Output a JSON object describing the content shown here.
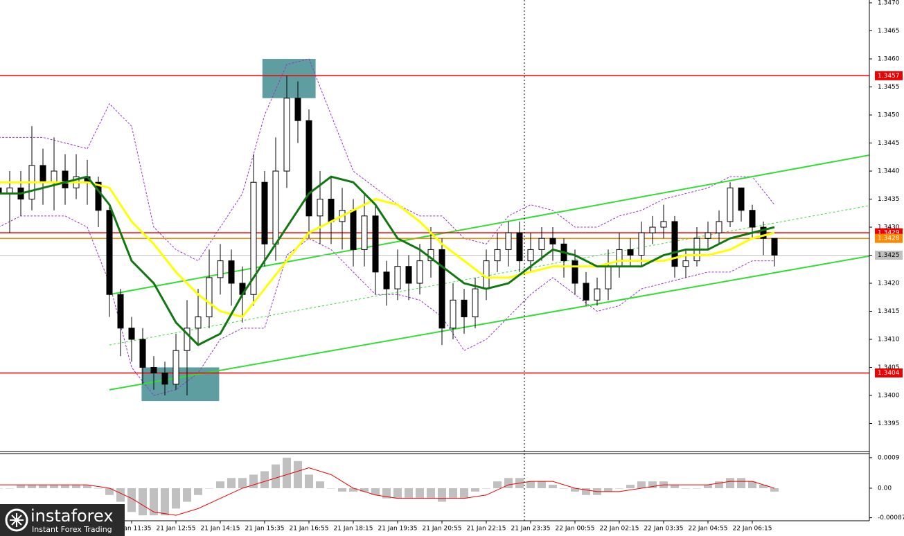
{
  "chart_data": {
    "type": "candlestick",
    "xlim": [
      0.125,
      78.5625
    ],
    "xticks": [
      {
        "value": 12,
        "label": "21 Jan 11:35"
      },
      {
        "value": 16,
        "label": "21 Jan 12:55"
      },
      {
        "value": 20,
        "label": "21 Jan 14:15"
      },
      {
        "value": 24,
        "label": "21 Jan 15:35"
      },
      {
        "value": 28,
        "label": "21 Jan 16:55"
      },
      {
        "value": 32,
        "label": "21 Jan 18:15"
      },
      {
        "value": 36,
        "label": "21 Jan 19:35"
      },
      {
        "value": 40,
        "label": "21 Jan 20:55"
      },
      {
        "value": 44,
        "label": "21 Jan 22:15"
      },
      {
        "value": 48,
        "label": "21 Jan 23:35"
      },
      {
        "value": 52,
        "label": "22 Jan 00:55"
      },
      {
        "value": 56,
        "label": "22 Jan 02:15"
      },
      {
        "value": 60,
        "label": "22 Jan 03:35"
      },
      {
        "value": 64,
        "label": "22 Jan 04:55"
      },
      {
        "value": 68,
        "label": "22 Jan 06:15"
      }
    ],
    "ylim": [
      1.339,
      1.34705
    ],
    "yticks": [
      {
        "value": 1.347,
        "label": "1.3470"
      },
      1.3465,
      {
        "value": 1.346,
        "label": "1.3460"
      },
      1.3455,
      {
        "value": 1.345,
        "label": "1.3450"
      },
      1.3445,
      {
        "value": 1.344,
        "label": "1.3440"
      },
      1.3435,
      {
        "value": 1.343,
        "label": "1.3430"
      },
      1.3425,
      {
        "value": 1.342,
        "label": "1.3420"
      },
      1.3415,
      {
        "value": 1.341,
        "label": "1.3410"
      },
      1.3405,
      {
        "value": 1.34,
        "label": "1.3400"
      },
      1.3395
    ],
    "up_color": "#ffffff",
    "down_color": "#000000",
    "open": [
      1.3437,
      1.3436,
      1.3437,
      1.3435,
      1.3441,
      1.3438,
      1.344,
      1.3437,
      1.3439,
      1.3438,
      1.3433,
      1.3418,
      1.3412,
      1.341,
      1.3405,
      1.3404,
      1.3402,
      1.3408,
      1.3412,
      1.3414,
      1.3421,
      1.3424,
      1.342,
      1.3418,
      1.3438,
      1.3427,
      1.344,
      1.3453,
      1.3449,
      1.3432,
      1.3435,
      1.3431,
      1.3433,
      1.3426,
      1.3432,
      1.3422,
      1.3419,
      1.3423,
      1.342,
      1.3424,
      1.3426,
      1.3412,
      1.3417,
      1.3414,
      1.3419,
      1.3424,
      1.3426,
      1.3429,
      1.3424,
      1.3426,
      1.3428,
      1.3427,
      1.3424,
      1.342,
      1.3417,
      1.3419,
      1.3423,
      1.3426,
      1.3425,
      1.3429,
      1.343,
      1.3431,
      1.3423,
      1.3424,
      1.3428,
      1.3429,
      1.3431,
      1.3437,
      1.3433,
      1.343,
      1.3428
    ],
    "high": [
      1.344,
      1.344,
      1.344,
      1.3448,
      1.3444,
      1.3446,
      1.3443,
      1.3443,
      1.3442,
      1.3439,
      1.3434,
      1.3419,
      1.3414,
      1.3412,
      1.3407,
      1.3406,
      1.3411,
      1.3417,
      1.3419,
      1.3426,
      1.3427,
      1.3426,
      1.3423,
      1.3443,
      1.344,
      1.3446,
      1.3457,
      1.3456,
      1.3451,
      1.344,
      1.3439,
      1.3437,
      1.3435,
      1.3436,
      1.3434,
      1.3424,
      1.3426,
      1.3425,
      1.3427,
      1.343,
      1.3428,
      1.342,
      1.3419,
      1.3421,
      1.3426,
      1.3429,
      1.3431,
      1.3431,
      1.3429,
      1.343,
      1.343,
      1.3428,
      1.3426,
      1.3422,
      1.3421,
      1.3426,
      1.3429,
      1.3428,
      1.3431,
      1.3432,
      1.3434,
      1.3432,
      1.3426,
      1.343,
      1.3431,
      1.3433,
      1.3438,
      1.3437,
      1.3434,
      1.3431,
      1.3428
    ],
    "low": [
      1.3433,
      1.3429,
      1.3432,
      1.3433,
      1.3434,
      1.3433,
      1.3434,
      1.3435,
      1.3434,
      1.343,
      1.3414,
      1.3407,
      1.3406,
      1.3402,
      1.3401,
      1.34,
      1.3401,
      1.34,
      1.3409,
      1.3412,
      1.3418,
      1.3416,
      1.3413,
      1.3416,
      1.3423,
      1.3424,
      1.3437,
      1.3445,
      1.3428,
      1.3427,
      1.3427,
      1.3426,
      1.3423,
      1.3423,
      1.3418,
      1.3416,
      1.3417,
      1.3417,
      1.3418,
      1.3421,
      1.3409,
      1.341,
      1.3411,
      1.3412,
      1.3417,
      1.3422,
      1.3423,
      1.3422,
      1.3422,
      1.3424,
      1.3424,
      1.3421,
      1.3418,
      1.3416,
      1.3416,
      1.3417,
      1.3421,
      1.3423,
      1.3423,
      1.3427,
      1.3428,
      1.3421,
      1.3421,
      1.3423,
      1.3426,
      1.3427,
      1.343,
      1.3431,
      1.3428,
      1.3425,
      1.3423
    ],
    "close": [
      1.3436,
      1.3437,
      1.3435,
      1.3441,
      1.3438,
      1.344,
      1.3437,
      1.3439,
      1.3438,
      1.3433,
      1.3418,
      1.3412,
      1.341,
      1.3405,
      1.3404,
      1.3402,
      1.3408,
      1.3412,
      1.3414,
      1.3421,
      1.3424,
      1.342,
      1.3418,
      1.3438,
      1.3427,
      1.344,
      1.3453,
      1.3449,
      1.3432,
      1.3435,
      1.3431,
      1.3433,
      1.3426,
      1.3432,
      1.3422,
      1.3419,
      1.3423,
      1.342,
      1.3424,
      1.3426,
      1.3412,
      1.3417,
      1.3414,
      1.3419,
      1.3424,
      1.3426,
      1.3429,
      1.3424,
      1.3426,
      1.3428,
      1.3427,
      1.3424,
      1.342,
      1.3417,
      1.3419,
      1.3423,
      1.3426,
      1.3425,
      1.3429,
      1.343,
      1.3431,
      1.3423,
      1.3424,
      1.3428,
      1.3429,
      1.3431,
      1.3437,
      1.3433,
      1.343,
      1.3428,
      1.3425
    ],
    "moving_averages": {
      "x": [
        0,
        2,
        4,
        6,
        8,
        10,
        12,
        14,
        16,
        18,
        20,
        22,
        24,
        26,
        28,
        30,
        32,
        34,
        36,
        38,
        40,
        42,
        44,
        46,
        48,
        50,
        52,
        54,
        56,
        58,
        60,
        62,
        64,
        66,
        68,
        70
      ],
      "series": [
        {
          "color": "#ffff00",
          "values": [
            1.3438,
            1.3438,
            1.3438,
            1.3438,
            1.3438,
            1.3437,
            1.3431,
            1.3427,
            1.3422,
            1.3418,
            1.3415,
            1.3414,
            1.3419,
            1.3424,
            1.3429,
            1.3431,
            1.3433,
            1.3435,
            1.3434,
            1.3431,
            1.3427,
            1.3424,
            1.3421,
            1.3421,
            1.3422,
            1.3423,
            1.3423,
            1.3423,
            1.3424,
            1.3424,
            1.3424,
            1.3425,
            1.3425,
            1.3426,
            1.3428,
            1.3429
          ]
        },
        {
          "color": "#117711",
          "values": [
            1.3436,
            1.3436,
            1.3437,
            1.3438,
            1.3439,
            1.3434,
            1.3424,
            1.342,
            1.3413,
            1.3409,
            1.3411,
            1.3418,
            1.3424,
            1.343,
            1.3436,
            1.3439,
            1.3438,
            1.3434,
            1.3428,
            1.3426,
            1.3423,
            1.342,
            1.3419,
            1.342,
            1.3423,
            1.3426,
            1.3425,
            1.3423,
            1.3423,
            1.3423,
            1.3425,
            1.3426,
            1.3426,
            1.3428,
            1.3429,
            1.343
          ]
        }
      ]
    },
    "envelope": {
      "color": "#9933cc",
      "upper": [
        1.3446,
        1.3446,
        1.3446,
        1.3445,
        1.3444,
        1.3452,
        1.3448,
        1.343,
        1.3426,
        1.3424,
        1.343,
        1.3436,
        1.345,
        1.3459,
        1.346,
        1.345,
        1.344,
        1.3437,
        1.3434,
        1.3432,
        1.3432,
        1.3428,
        1.3427,
        1.3432,
        1.3434,
        1.3433,
        1.343,
        1.343,
        1.3432,
        1.3433,
        1.3435,
        1.3436,
        1.3437,
        1.3439,
        1.3439,
        1.3434
      ],
      "lower": [
        1.343,
        1.3432,
        1.3432,
        1.3432,
        1.343,
        1.342,
        1.3405,
        1.34,
        1.3401,
        1.3404,
        1.341,
        1.3412,
        1.3412,
        1.3425,
        1.3428,
        1.3426,
        1.3422,
        1.3418,
        1.3418,
        1.3417,
        1.3414,
        1.3408,
        1.341,
        1.3414,
        1.3418,
        1.3421,
        1.3418,
        1.3415,
        1.3416,
        1.3419,
        1.342,
        1.3421,
        1.3422,
        1.3422,
        1.3424,
        1.3424
      ]
    },
    "trendlines": [
      {
        "x": [
          10,
          79
        ],
        "values": [
          1.3401,
          1.3425
        ],
        "color": "#33dd33"
      },
      {
        "x": [
          10,
          79
        ],
        "values": [
          1.3418,
          1.3443
        ],
        "color": "#33dd33"
      },
      {
        "x": [
          10,
          79
        ],
        "values": [
          1.3409,
          1.3434
        ],
        "color": "#33dd33",
        "dashed": true
      }
    ],
    "zones": [
      {
        "x": [
          23.8,
          28.6
        ],
        "y": [
          1.3453,
          1.346
        ],
        "color": "#5f9ea0"
      },
      {
        "x": [
          12.9,
          19.9
        ],
        "y": [
          1.3399,
          1.3405
        ],
        "color": "#5f9ea0"
      }
    ],
    "levels": [
      {
        "value": 1.3457,
        "color": "#ee0000"
      },
      {
        "value": 1.3429,
        "color": "#ee0000"
      },
      {
        "value": 1.3428,
        "color": "#ff8800"
      },
      {
        "value": 1.3425,
        "color": "#c0c0c0"
      },
      {
        "value": 1.3404,
        "color": "#ee0000"
      }
    ],
    "macd": {
      "ylim": [
        -0.00096,
        0.00102
      ],
      "yticks": [
        0.0009,
        {
          "value": 0,
          "label": "0.00"
        },
        -0.00087
      ],
      "hist_color": "#c0c0c0",
      "signal_color": "#ee0000",
      "histogram": [
        0.0,
        0.0,
        0.0001,
        0.0001,
        0.0001,
        0.0001,
        0.0001,
        0.0001,
        0.0001,
        0.0,
        -0.0002,
        -0.0004,
        -0.0007,
        -0.0008,
        -0.0008,
        -0.0008,
        -0.0006,
        -0.0004,
        -0.0002,
        0.0,
        0.0002,
        0.0003,
        0.0003,
        0.0004,
        0.0005,
        0.0007,
        0.0009,
        0.0008,
        0.0004,
        0.0002,
        0.0,
        -0.0001,
        -0.0001,
        -0.0001,
        -0.0002,
        -0.0003,
        -0.0003,
        -0.0003,
        -0.0003,
        -0.0003,
        -0.0004,
        -0.0003,
        -0.0003,
        -0.0001,
        0.0,
        0.0002,
        0.0003,
        0.0003,
        0.0002,
        0.0002,
        0.0001,
        0.0,
        -0.0001,
        -0.0002,
        -0.0002,
        -0.0001,
        0.0,
        0.0001,
        0.0002,
        0.0002,
        0.0002,
        0.0001,
        0.0,
        0.0,
        0.0001,
        0.0002,
        0.0003,
        0.0003,
        0.0002,
        0.0001,
        -0.0001
      ],
      "signal": [
        0.0001,
        0.0001,
        0.0001,
        0.0001,
        0.0001,
        0.0,
        -0.0003,
        -0.0007,
        -0.0008,
        -0.0006,
        -0.0003,
        0.0,
        0.0002,
        0.0004,
        0.0006,
        0.0004,
        0.0,
        -0.0002,
        -0.0003,
        -0.0003,
        -0.0003,
        -0.0003,
        -0.0002,
        0.0001,
        0.0002,
        0.0002,
        0.0,
        -0.0001,
        -0.0001,
        0.0,
        0.0001,
        0.0001,
        0.0001,
        0.0002,
        0.0002,
        0.0
      ]
    },
    "logo": {
      "name": "instaforex",
      "tagline": "Instant Forex Trading"
    }
  }
}
